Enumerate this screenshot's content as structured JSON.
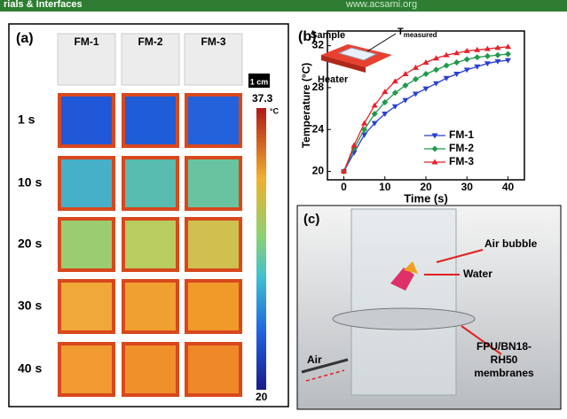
{
  "header": {
    "left": "rials & Interfaces",
    "right": "www.acsami.org"
  },
  "panel_a": {
    "label": "(a)",
    "columns": [
      "FM-1",
      "FM-2",
      "FM-3"
    ],
    "rows": [
      "1 s",
      "10 s",
      "20 s",
      "30 s",
      "40 s"
    ],
    "scale_bar": "1 cm",
    "colorbar": {
      "max": 37.3,
      "min": 20,
      "unit": "°C"
    }
  },
  "chart_data": {
    "type": "line",
    "label": "(b)",
    "xlabel": "Time (s)",
    "ylabel": "Temperature (°C)",
    "x": [
      0,
      2.5,
      5,
      7.5,
      10,
      12.5,
      15,
      17.5,
      20,
      22.5,
      25,
      27.5,
      30,
      32.5,
      35,
      37.5,
      40
    ],
    "series": [
      {
        "name": "FM-1",
        "color": "#2a3fd0",
        "marker": "triangle-down",
        "values": [
          20,
          21.8,
          23.5,
          24.6,
          25.5,
          26.2,
          26.8,
          27.4,
          27.9,
          28.4,
          28.9,
          29.3,
          29.7,
          30.0,
          30.3,
          30.5,
          30.6
        ]
      },
      {
        "name": "FM-2",
        "color": "#1f9a4a",
        "marker": "diamond",
        "values": [
          20,
          22.2,
          24.0,
          25.5,
          26.6,
          27.5,
          28.2,
          28.8,
          29.3,
          29.7,
          30.1,
          30.4,
          30.7,
          30.9,
          31.0,
          31.1,
          31.2
        ]
      },
      {
        "name": "FM-3",
        "color": "#e8202a",
        "marker": "triangle-up",
        "values": [
          20,
          22.5,
          24.6,
          26.3,
          27.6,
          28.6,
          29.3,
          29.9,
          30.4,
          30.8,
          31.1,
          31.3,
          31.5,
          31.6,
          31.7,
          31.8,
          31.9
        ]
      }
    ],
    "xlim": [
      -4,
      44
    ],
    "xticks": [
      0,
      10,
      20,
      30,
      40
    ],
    "ylim": [
      19.2,
      33.4
    ],
    "yticks": [
      20,
      24,
      28,
      32
    ]
  },
  "inset": {
    "sample": "Sample",
    "t": "T",
    "t_sub": "measured",
    "heater": "Heater"
  },
  "panel_c": {
    "label": "(c)",
    "bubble": "Air bubble",
    "water": "Water",
    "air": "Air",
    "membrane": [
      "FPU/BN18-",
      "RH50",
      "membranes"
    ]
  }
}
